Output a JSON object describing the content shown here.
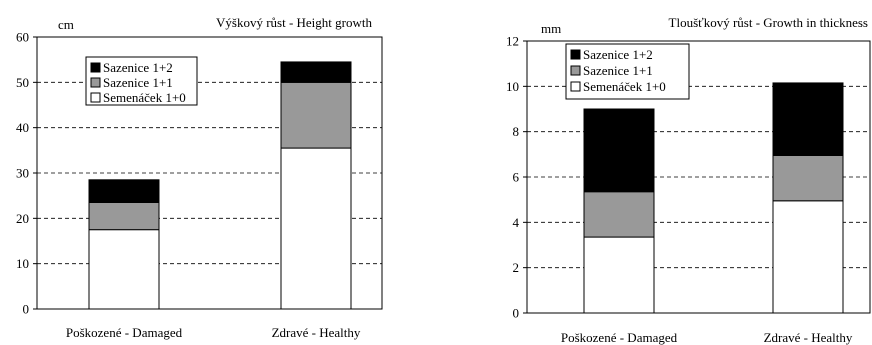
{
  "chart_data": [
    {
      "type": "bar",
      "stacked": true,
      "title": "Výškový růst - Height growth",
      "unit": "cm",
      "categories": [
        "Poškozené - Damaged",
        "Zdravé - Healthy"
      ],
      "ylim": [
        0,
        60
      ],
      "yticks": [
        0,
        10,
        20,
        30,
        40,
        50,
        60
      ],
      "grid": true,
      "legend_position": "top-left",
      "series": [
        {
          "name": "Semenáček 1+0",
          "color": "#ffffff",
          "values": [
            17.5,
            35.5
          ]
        },
        {
          "name": "Sazenice 1+1",
          "color": "#999999",
          "values": [
            6,
            14.5
          ]
        },
        {
          "name": "Sazenice 1+2",
          "color": "#000000",
          "values": [
            5,
            4.5
          ]
        }
      ]
    },
    {
      "type": "bar",
      "stacked": true,
      "title": "Tloušťkový růst - Growth in thickness",
      "unit": "mm",
      "categories": [
        "Poškozené - Damaged",
        "Zdravé - Healthy"
      ],
      "ylim": [
        0,
        12
      ],
      "yticks": [
        0,
        2,
        4,
        6,
        8,
        10,
        12
      ],
      "grid": true,
      "legend_position": "top-left",
      "series": [
        {
          "name": "Semenáček 1+0",
          "color": "#ffffff",
          "values": [
            3.35,
            4.95
          ]
        },
        {
          "name": "Sazenice 1+1",
          "color": "#999999",
          "values": [
            2.0,
            2.0
          ]
        },
        {
          "name": "Sazenice 1+2",
          "color": "#000000",
          "values": [
            3.65,
            3.2
          ]
        }
      ]
    }
  ]
}
